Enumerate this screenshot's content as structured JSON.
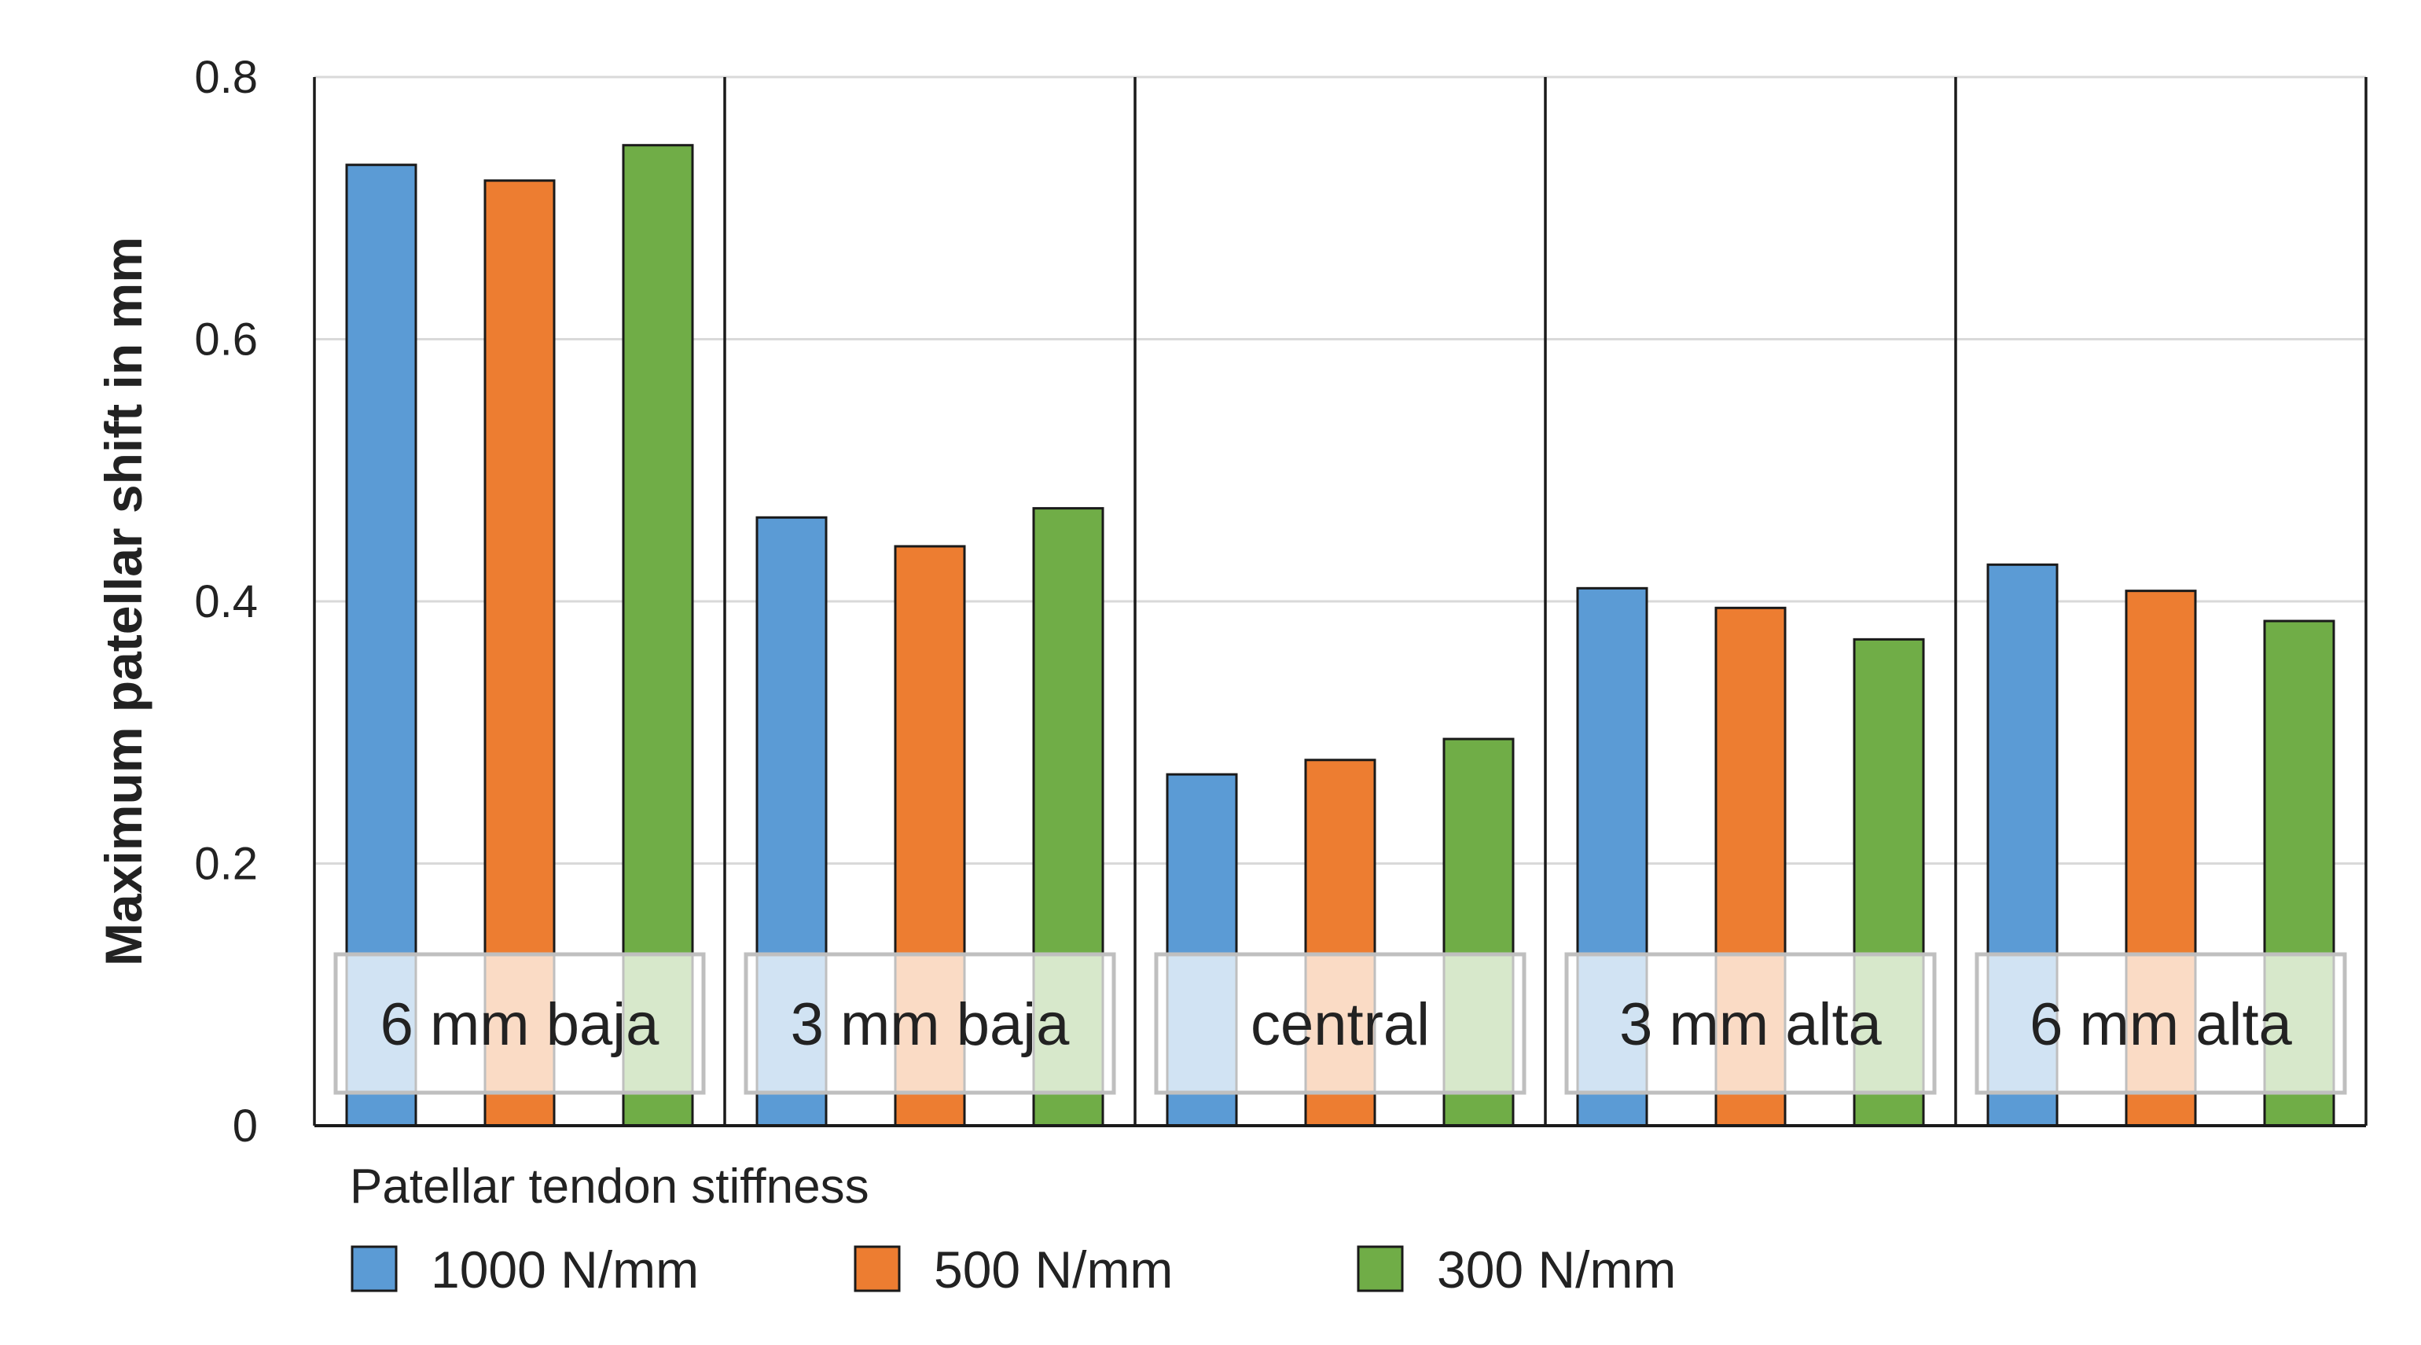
{
  "chart_data": {
    "type": "bar",
    "title": "",
    "xlabel": "",
    "ylabel": "Maximum patellar shift in mm",
    "ylim": [
      0,
      0.8
    ],
    "yticks": [
      "0",
      "0.2",
      "0.4",
      "0.6",
      "0.8"
    ],
    "grid": true,
    "categories": [
      "6 mm baja",
      "3 mm baja",
      "central",
      "3 mm alta",
      "6 mm alta"
    ],
    "series": [
      {
        "name": "1000 N/mm",
        "color": "#5b9bd5",
        "values": [
          0.733,
          0.464,
          0.268,
          0.41,
          0.428
        ]
      },
      {
        "name": "500 N/mm",
        "color": "#ed7d31",
        "values": [
          0.721,
          0.442,
          0.279,
          0.395,
          0.408
        ]
      },
      {
        "name": "300 N/mm",
        "color": "#70ad47",
        "values": [
          0.748,
          0.471,
          0.295,
          0.371,
          0.385
        ]
      }
    ],
    "legend": {
      "title": "Patellar tendon stiffness",
      "placement": "bottom-left"
    }
  }
}
